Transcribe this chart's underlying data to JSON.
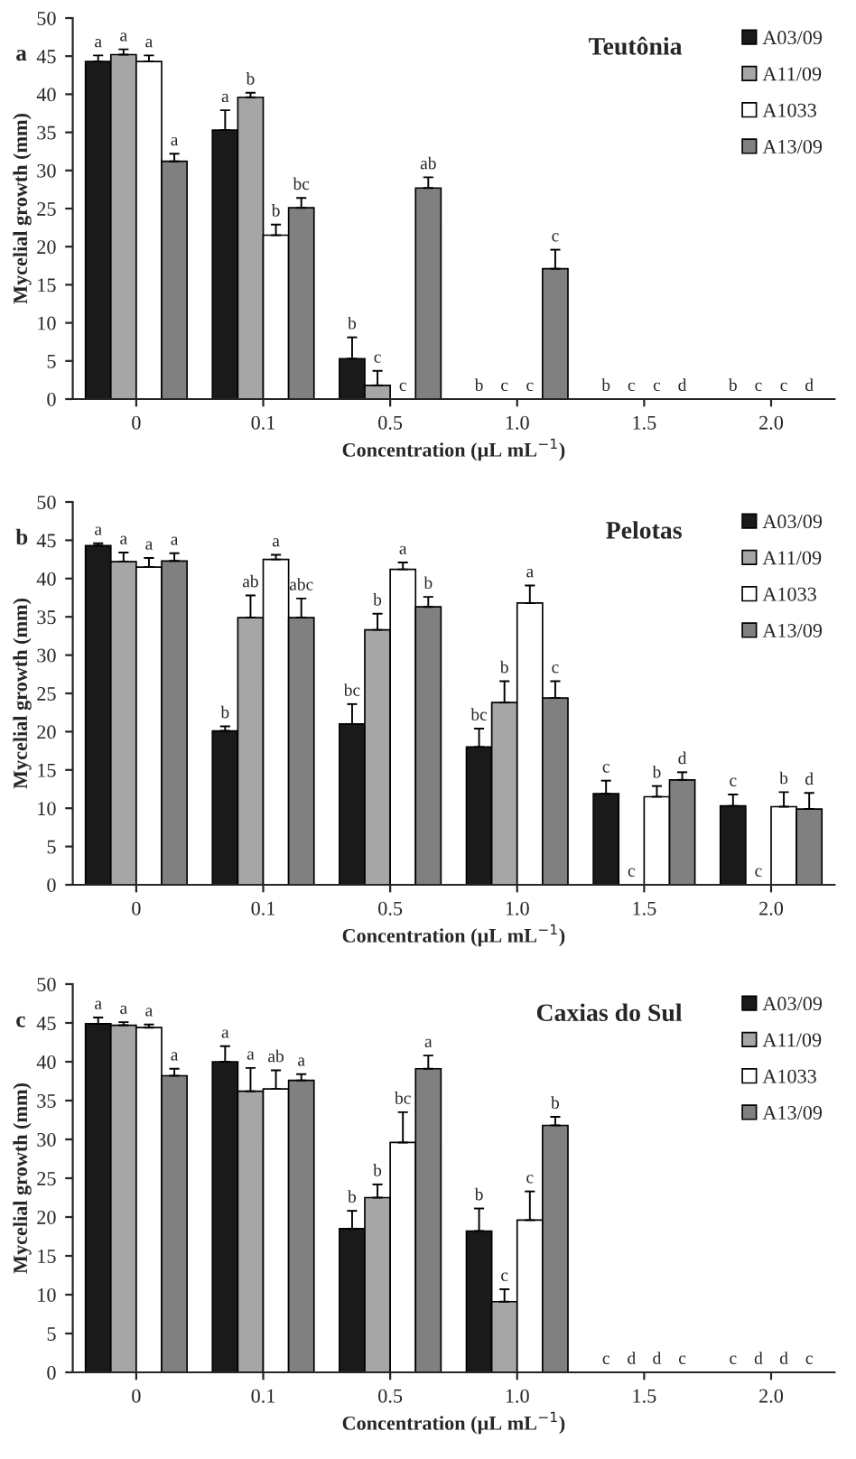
{
  "chart_data": [
    {
      "type": "bar",
      "title": "Teutônia",
      "annotations": [
        "a"
      ],
      "xlabel": "Concentration (µL mL$^{−1}$)",
      "ylabel": "Mycelial growth (mm)",
      "categories": [
        "0",
        "0.1",
        "0.5",
        "1.0",
        "1.5",
        "2.0"
      ],
      "ylim": [
        0,
        50
      ],
      "yticks": [
        0,
        5,
        10,
        15,
        20,
        25,
        30,
        35,
        40,
        45,
        50
      ],
      "legend": "top right",
      "series": [
        {
          "name": "A03/09",
          "color": "#1a1a1a",
          "values": [
            44.3,
            35.3,
            5.3,
            0,
            0,
            0
          ],
          "errors": [
            [
              44.3,
              45.1
            ],
            [
              35.3,
              37.9
            ],
            [
              5.3,
              8.1
            ],
            null,
            null,
            null
          ],
          "value_labels": [
            "a",
            "a",
            "b",
            "b",
            "b",
            "b"
          ]
        },
        {
          "name": "A11/09",
          "color": "#a6a6a6",
          "values": [
            45.2,
            39.6,
            1.8,
            0,
            0,
            0
          ],
          "errors": [
            [
              45.2,
              45.9
            ],
            [
              39.6,
              40.2
            ],
            [
              1.8,
              3.7
            ],
            null,
            null,
            null
          ],
          "value_labels": [
            "a",
            "b",
            "c",
            "c",
            "c",
            "c"
          ]
        },
        {
          "name": "A1033",
          "color": "#ffffff",
          "values": [
            44.3,
            21.5,
            0,
            0,
            0,
            0
          ],
          "errors": [
            [
              44.3,
              45.1
            ],
            [
              21.5,
              22.9
            ],
            null,
            null,
            null,
            null
          ],
          "value_labels": [
            "a",
            "b",
            "c",
            "c",
            "c",
            "c"
          ]
        },
        {
          "name": "A13/09",
          "color": "#808080",
          "values": [
            31.2,
            25.1,
            27.7,
            17.1,
            0,
            0
          ],
          "errors": [
            [
              31.2,
              32.2
            ],
            [
              25.1,
              26.4
            ],
            [
              27.7,
              29.1
            ],
            [
              17.1,
              19.6
            ],
            null,
            null
          ],
          "value_labels": [
            "a",
            "bc",
            "ab",
            "c",
            "d",
            "d"
          ]
        }
      ]
    },
    {
      "type": "bar",
      "title": "Pelotas",
      "annotations": [
        "b"
      ],
      "xlabel": "Concentration (µL mL$^{−1}$)",
      "ylabel": "Mycelial growth (mm)",
      "categories": [
        "0",
        "0.1",
        "0.5",
        "1.0",
        "1.5",
        "2.0"
      ],
      "ylim": [
        0,
        50
      ],
      "yticks": [
        0,
        5,
        10,
        15,
        20,
        25,
        30,
        35,
        40,
        45,
        50
      ],
      "legend": "top right",
      "series": [
        {
          "name": "A03/09",
          "color": "#1a1a1a",
          "values": [
            44.3,
            20.1,
            21.0,
            18.0,
            11.9,
            10.3
          ],
          "errors": [
            [
              44.3,
              44.6
            ],
            [
              20.1,
              20.7
            ],
            [
              21.0,
              23.6
            ],
            [
              18.0,
              20.4
            ],
            [
              11.9,
              13.6
            ],
            [
              10.3,
              11.8
            ]
          ],
          "value_labels": [
            "a",
            "b",
            "bc",
            "bc",
            "c",
            "c"
          ]
        },
        {
          "name": "A11/09",
          "color": "#a6a6a6",
          "values": [
            42.2,
            34.9,
            33.3,
            23.8,
            0,
            0
          ],
          "errors": [
            [
              42.2,
              43.4
            ],
            [
              34.9,
              37.8
            ],
            [
              33.3,
              35.4
            ],
            [
              23.8,
              26.6
            ],
            null,
            null
          ],
          "value_labels": [
            "a",
            "ab",
            "b",
            "b",
            "c",
            "c"
          ]
        },
        {
          "name": "A1033",
          "color": "#ffffff",
          "values": [
            41.5,
            42.5,
            41.2,
            36.8,
            11.5,
            10.2
          ],
          "errors": [
            [
              41.5,
              42.7
            ],
            [
              42.5,
              43.1
            ],
            [
              41.2,
              42.1
            ],
            [
              36.8,
              39.1
            ],
            [
              11.5,
              12.9
            ],
            [
              10.2,
              12.1
            ]
          ],
          "value_labels": [
            "a",
            "a",
            "a",
            "a",
            "b",
            "b"
          ]
        },
        {
          "name": "A13/09",
          "color": "#808080",
          "values": [
            42.3,
            34.9,
            36.3,
            24.4,
            13.7,
            9.9
          ],
          "errors": [
            [
              42.3,
              43.3
            ],
            [
              34.9,
              37.4
            ],
            [
              36.3,
              37.6
            ],
            [
              24.4,
              26.6
            ],
            [
              13.7,
              14.7
            ],
            [
              9.9,
              12.0
            ]
          ],
          "value_labels": [
            "a",
            "abc",
            "b",
            "c",
            "d",
            "d"
          ]
        }
      ]
    },
    {
      "type": "bar",
      "title": "Caxias do Sul",
      "annotations": [
        "c"
      ],
      "xlabel": "Concentration (µL mL$^{−1}$)",
      "ylabel": "Mycelial growth (mm)",
      "categories": [
        "0",
        "0.1",
        "0.5",
        "1.0",
        "1.5",
        "2.0"
      ],
      "ylim": [
        0,
        50
      ],
      "yticks": [
        0,
        5,
        10,
        15,
        20,
        25,
        30,
        35,
        40,
        45,
        50
      ],
      "legend": "top right",
      "series": [
        {
          "name": "A03/09",
          "color": "#1a1a1a",
          "values": [
            44.9,
            40.0,
            18.5,
            18.2,
            0,
            0
          ],
          "errors": [
            [
              44.9,
              45.7
            ],
            [
              40.0,
              42.0
            ],
            [
              18.5,
              20.8
            ],
            [
              18.2,
              21.1
            ],
            null,
            null
          ],
          "value_labels": [
            "a",
            "a",
            "b",
            "b",
            "c",
            "c"
          ]
        },
        {
          "name": "A11/09",
          "color": "#a6a6a6",
          "values": [
            44.7,
            36.2,
            22.5,
            9.1,
            0,
            0
          ],
          "errors": [
            [
              44.7,
              45.1
            ],
            [
              36.2,
              39.2
            ],
            [
              22.5,
              24.2
            ],
            [
              9.1,
              10.7
            ],
            null,
            null
          ],
          "value_labels": [
            "a",
            "a",
            "b",
            "c",
            "d",
            "d"
          ]
        },
        {
          "name": "A1033",
          "color": "#ffffff",
          "values": [
            44.4,
            36.5,
            29.6,
            19.6,
            0,
            0
          ],
          "errors": [
            [
              44.4,
              44.8
            ],
            [
              36.5,
              38.9
            ],
            [
              29.6,
              33.5
            ],
            [
              19.6,
              23.3
            ],
            null,
            null
          ],
          "value_labels": [
            "a",
            "ab",
            "bc",
            "c",
            "d",
            "d"
          ]
        },
        {
          "name": "A13/09",
          "color": "#808080",
          "values": [
            38.2,
            37.6,
            39.1,
            31.8,
            0,
            0
          ],
          "errors": [
            [
              38.2,
              39.1
            ],
            [
              37.6,
              38.4
            ],
            [
              39.1,
              40.8
            ],
            [
              31.8,
              32.9
            ],
            null,
            null
          ],
          "value_labels": [
            "a",
            "a",
            "a",
            "b",
            "c",
            "c"
          ]
        }
      ]
    }
  ]
}
